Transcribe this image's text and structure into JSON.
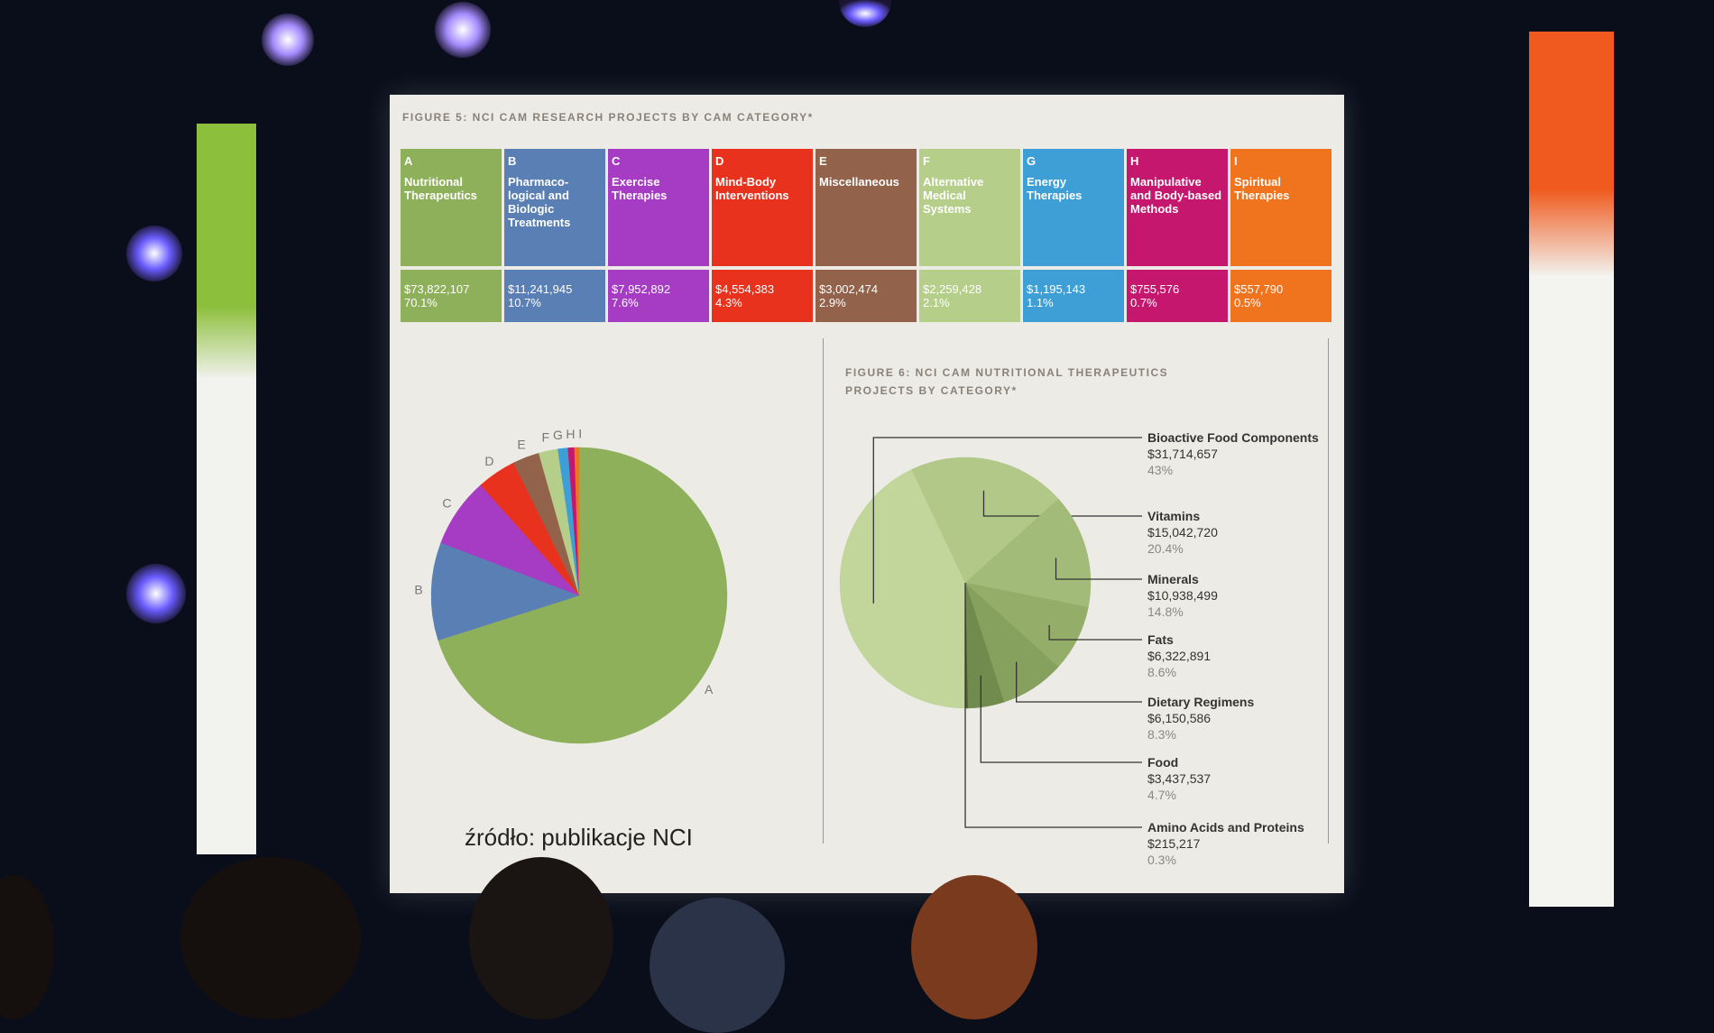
{
  "slide": {
    "caption": "źródło: publikacje NCI"
  },
  "chart_data": [
    {
      "type": "pie",
      "title": "FIGURE 5: NCI CAM RESEARCH PROJECTS BY CAM CATEGORY*",
      "categories": [
        "A",
        "B",
        "C",
        "D",
        "E",
        "F",
        "G",
        "H",
        "I"
      ],
      "names": [
        "Nutritional Therapeutics",
        "Pharmaco-logical and Biologic Treatments",
        "Exercise Therapies",
        "Mind-Body Interventions",
        "Miscellaneous",
        "Alternative Medical Systems",
        "Energy Therapies",
        "Manipulative and Body-based Methods",
        "Spiritual Therapies"
      ],
      "amounts": [
        "$73,822,107",
        "$11,241,945",
        "$7,952,892",
        "$4,554,383",
        "$3,002,474",
        "$2,259,428",
        "$1,195,143",
        "$755,576",
        "$557,790"
      ],
      "values": [
        70.1,
        10.7,
        7.6,
        4.3,
        2.9,
        2.1,
        1.1,
        0.7,
        0.5
      ],
      "value_labels": [
        "70.1%",
        "10.7%",
        "7.6%",
        "4.3%",
        "2.9%",
        "2.1%",
        "1.1%",
        "0.7%",
        "0.5%"
      ],
      "colors": [
        "#8fb05a",
        "#5a7fb5",
        "#a63cc4",
        "#e8321e",
        "#93624a",
        "#b5cf8a",
        "#3e9fd6",
        "#c5176e",
        "#f0741e"
      ]
    },
    {
      "type": "pie",
      "title": "FIGURE 6: NCI CAM NUTRITIONAL THERAPEUTICS PROJECTS BY CATEGORY*",
      "categories": [
        "Bioactive Food Components",
        "Vitamins",
        "Minerals",
        "Fats",
        "Dietary Regimens",
        "Food",
        "Amino Acids and Proteins"
      ],
      "amounts": [
        "$31,714,657",
        "$15,042,720",
        "$10,938,499",
        "$6,322,891",
        "$6,150,586",
        "$3,437,537",
        "$215,217"
      ],
      "values": [
        43,
        20.4,
        14.8,
        8.6,
        8.3,
        4.7,
        0.3
      ],
      "value_labels": [
        "43%",
        "20.4%",
        "14.8%",
        "8.6%",
        "8.3%",
        "4.7%",
        "0.3%"
      ],
      "colors": [
        "#c2d69b",
        "#b2c888",
        "#a3bb78",
        "#94ae6a",
        "#86a05e",
        "#718a4e",
        "#4e6234"
      ]
    }
  ]
}
